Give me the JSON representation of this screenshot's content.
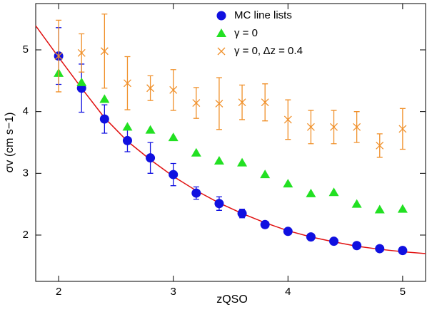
{
  "chart_data": {
    "type": "scatter",
    "xlabel": "zQSO",
    "ylabel": "σv (cm s−1)",
    "xlim": [
      1.8,
      5.2
    ],
    "ylim": [
      1.25,
      5.75
    ],
    "xticks": [
      2,
      3,
      4,
      5
    ],
    "yticks": [
      2,
      3,
      4,
      5
    ],
    "legend": "upper right",
    "series": [
      {
        "name": "MC line lists",
        "color": "#1010e0",
        "marker": "circle",
        "x": [
          2.0,
          2.2,
          2.4,
          2.6,
          2.8,
          3.0,
          3.2,
          3.4,
          3.6,
          3.8,
          4.0,
          4.2,
          4.4,
          4.6,
          4.8,
          5.0
        ],
        "values": [
          4.9,
          4.38,
          3.88,
          3.53,
          3.25,
          2.98,
          2.68,
          2.51,
          2.35,
          2.17,
          2.06,
          1.97,
          1.9,
          1.83,
          1.78,
          1.75
        ],
        "errors": [
          0.46,
          0.39,
          0.23,
          0.18,
          0.25,
          0.18,
          0.1,
          0.11,
          0.07,
          0.05,
          0.03,
          0.05,
          0.04,
          0.04,
          0.03,
          0.04
        ]
      },
      {
        "name": "γ = 0",
        "color": "#22e022",
        "marker": "triangle",
        "x": [
          2.0,
          2.2,
          2.4,
          2.6,
          2.8,
          3.0,
          3.2,
          3.4,
          3.6,
          3.8,
          4.0,
          4.2,
          4.4,
          4.6,
          4.8,
          5.0
        ],
        "values": [
          4.62,
          4.47,
          4.2,
          3.75,
          3.7,
          3.58,
          3.33,
          3.2,
          3.17,
          2.98,
          2.83,
          2.67,
          2.69,
          2.5,
          2.41,
          2.42
        ]
      },
      {
        "name": "γ = 0, Δz = 0.4",
        "color": "#f0902a",
        "marker": "cross",
        "x": [
          2.0,
          2.2,
          2.4,
          2.6,
          2.8,
          3.0,
          3.2,
          3.4,
          3.6,
          3.8,
          4.0,
          4.2,
          4.4,
          4.6,
          4.8,
          5.0
        ],
        "values": [
          4.9,
          4.95,
          4.98,
          4.46,
          4.38,
          4.35,
          4.14,
          4.13,
          4.15,
          4.15,
          3.87,
          3.75,
          3.75,
          3.75,
          3.45,
          3.72
        ],
        "errors": [
          0.58,
          0.31,
          0.6,
          0.43,
          0.2,
          0.33,
          0.25,
          0.42,
          0.28,
          0.3,
          0.32,
          0.27,
          0.27,
          0.25,
          0.19,
          0.33
        ]
      }
    ],
    "fit": {
      "color": "#e01010",
      "x": [
        1.8,
        2.0,
        2.2,
        2.4,
        2.6,
        2.8,
        3.0,
        3.2,
        3.4,
        3.6,
        3.8,
        4.0,
        4.2,
        4.4,
        4.6,
        4.8,
        5.0,
        5.2
      ],
      "values": [
        5.39,
        4.88,
        4.38,
        3.9,
        3.52,
        3.22,
        2.95,
        2.72,
        2.52,
        2.35,
        2.2,
        2.07,
        1.97,
        1.89,
        1.82,
        1.77,
        1.73,
        1.7
      ]
    }
  }
}
